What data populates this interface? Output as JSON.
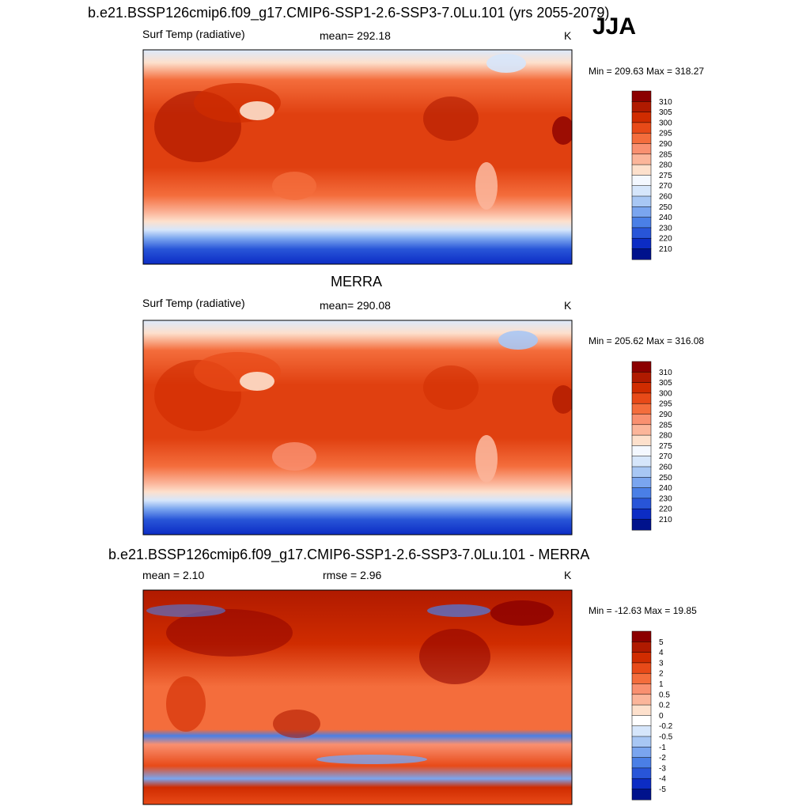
{
  "season": "JJA",
  "chart_data": [
    {
      "type": "heatmap",
      "title": "b.e21.BSSP126cmip6.f09_g17.CMIP6-SSP1-2.6-SSP3-7.0Lu.101 (yrs 2055-2079)",
      "left_label": "Surf Temp (radiative)",
      "center_label": "mean= 292.18",
      "units": "K",
      "min_max": "Min = 209.63 Max = 318.27",
      "levels": [
        "310",
        "305",
        "300",
        "295",
        "290",
        "285",
        "280",
        "275",
        "270",
        "260",
        "250",
        "240",
        "230",
        "220",
        "210"
      ],
      "colors": [
        "#8b0000",
        "#b01a00",
        "#d02c00",
        "#e84a18",
        "#f46d3c",
        "#f99070",
        "#fbb59a",
        "#fde0cc",
        "#f4f8ff",
        "#d6e6fb",
        "#a8c7f4",
        "#7aa5ef",
        "#4a7fe6",
        "#2855d8",
        "#0c2cc4",
        "#00128c"
      ],
      "value_range": [
        209.63,
        318.27
      ],
      "mean": 292.18
    },
    {
      "type": "heatmap",
      "title": "MERRA",
      "left_label": "Surf Temp (radiative)",
      "center_label": "mean= 290.08",
      "units": "K",
      "min_max": "Min = 205.62 Max = 316.08",
      "levels": [
        "310",
        "305",
        "300",
        "295",
        "290",
        "285",
        "280",
        "275",
        "270",
        "260",
        "250",
        "240",
        "230",
        "220",
        "210"
      ],
      "colors": [
        "#8b0000",
        "#b01a00",
        "#d02c00",
        "#e84a18",
        "#f46d3c",
        "#f99070",
        "#fbb59a",
        "#fde0cc",
        "#f4f8ff",
        "#d6e6fb",
        "#a8c7f4",
        "#7aa5ef",
        "#4a7fe6",
        "#2855d8",
        "#0c2cc4",
        "#00128c"
      ],
      "value_range": [
        205.62,
        316.08
      ],
      "mean": 290.08
    },
    {
      "type": "heatmap",
      "title": "b.e21.BSSP126cmip6.f09_g17.CMIP6-SSP1-2.6-SSP3-7.0Lu.101 - MERRA",
      "left_label": "mean =   2.10",
      "center_label": "rmse =   2.96",
      "units": "K",
      "min_max": "Min = -12.63 Max =  19.85",
      "levels": [
        "5",
        "4",
        "3",
        "2",
        "1",
        "0.5",
        "0.2",
        "0",
        "-0.2",
        "-0.5",
        "-1",
        "-2",
        "-3",
        "-4",
        "-5"
      ],
      "colors": [
        "#8b0000",
        "#b01a00",
        "#d02c00",
        "#e84a18",
        "#f46d3c",
        "#f99070",
        "#fbb59a",
        "#fde0cc",
        "#ffffff",
        "#d6e6fb",
        "#a8c7f4",
        "#7aa5ef",
        "#4a7fe6",
        "#2855d8",
        "#0c2cc4",
        "#00128c"
      ],
      "value_range": [
        -12.63,
        19.85
      ],
      "mean": 2.1,
      "rmse": 2.96
    }
  ]
}
